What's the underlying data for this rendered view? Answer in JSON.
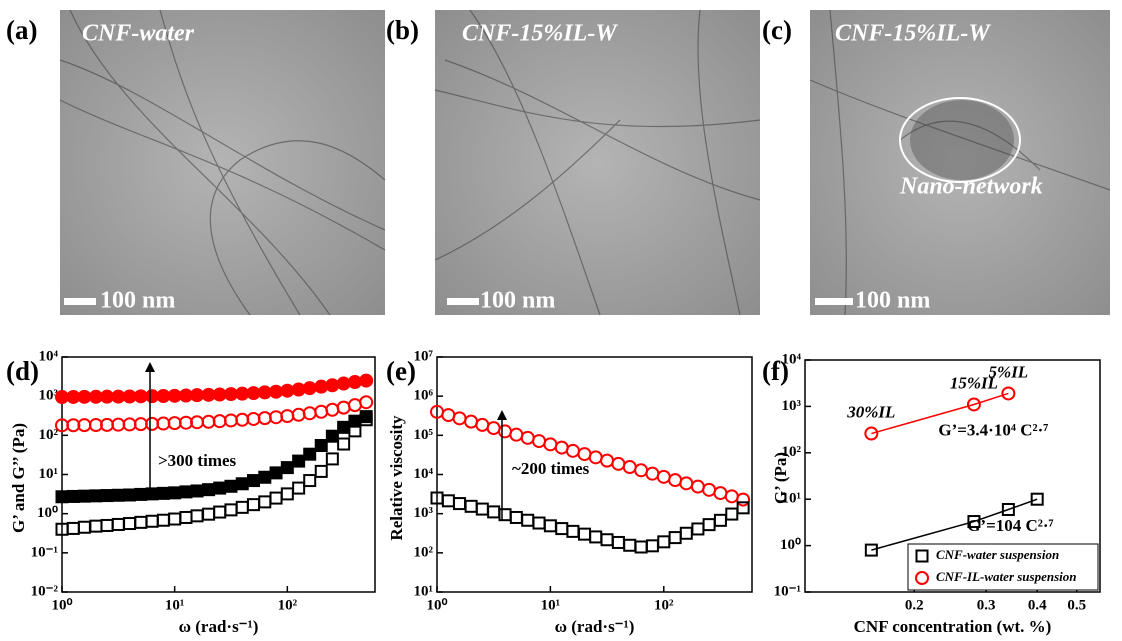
{
  "image_panels": [
    {
      "label": "(a)",
      "title": "CNF-water",
      "scale_bar": "100 nm"
    },
    {
      "label": "(b)",
      "title": "CNF-15%IL-W",
      "scale_bar": "100 nm"
    },
    {
      "label": "(c)",
      "title": "CNF-15%IL-W",
      "scale_bar": "100 nm",
      "annotation": "Nano-network"
    }
  ],
  "chart_data": [
    {
      "type": "scatter",
      "label": "(d)",
      "xlabel": "ω (rad·s⁻¹)",
      "ylabel": "G’ and G’’ (Pa)",
      "log_x": true,
      "log_y": true,
      "xlim": [
        1,
        600
      ],
      "xticks": [
        {
          "value": 1,
          "label": "10⁰"
        },
        {
          "value": 10,
          "label": "10¹"
        },
        {
          "value": 100,
          "label": "10²"
        }
      ],
      "ylim": [
        0.01,
        10000
      ],
      "yticks": [
        {
          "value": 0.01,
          "label": "10⁻²"
        },
        {
          "value": 0.1,
          "label": "10⁻¹"
        },
        {
          "value": 1,
          "label": "10⁰"
        },
        {
          "value": 10,
          "label": "10¹"
        },
        {
          "value": 100,
          "label": "10²"
        },
        {
          "value": 1000,
          "label": "10³"
        },
        {
          "value": 10000,
          "label": "10⁴"
        }
      ],
      "annotation": ">300 times",
      "x": [
        1,
        1.26,
        1.58,
        2,
        2.51,
        3.16,
        3.98,
        5.01,
        6.31,
        7.94,
        10,
        12.6,
        15.8,
        20,
        25.1,
        31.6,
        39.8,
        50.1,
        63.1,
        79.4,
        100,
        126,
        158,
        200,
        251,
        316,
        398,
        501
      ],
      "series": [
        {
          "color": "#ff0000",
          "marker": "circle",
          "filled": true,
          "values": [
            950,
            955,
            960,
            965,
            970,
            975,
            980,
            990,
            1000,
            1010,
            1020,
            1040,
            1060,
            1080,
            1100,
            1130,
            1160,
            1200,
            1250,
            1300,
            1380,
            1480,
            1600,
            1750,
            1900,
            2100,
            2300,
            2500
          ]
        },
        {
          "color": "#ff0000",
          "marker": "circle",
          "filled": false,
          "values": [
            180,
            181,
            182,
            183,
            185,
            187,
            190,
            193,
            196,
            200,
            205,
            210,
            216,
            222,
            230,
            240,
            250,
            262,
            275,
            290,
            310,
            335,
            365,
            400,
            450,
            510,
            590,
            700
          ]
        },
        {
          "color": "#000000",
          "marker": "square",
          "filled": true,
          "values": [
            2.7,
            2.75,
            2.8,
            2.85,
            2.9,
            2.95,
            3.0,
            3.1,
            3.2,
            3.3,
            3.4,
            3.6,
            3.8,
            4.1,
            4.5,
            5.0,
            5.8,
            7,
            8.5,
            11,
            15,
            22,
            33,
            55,
            95,
            160,
            230,
            300
          ]
        },
        {
          "color": "#000000",
          "marker": "square",
          "filled": false,
          "values": [
            0.4,
            0.42,
            0.45,
            0.48,
            0.5,
            0.53,
            0.56,
            0.6,
            0.64,
            0.68,
            0.73,
            0.8,
            0.88,
            0.97,
            1.1,
            1.25,
            1.45,
            1.7,
            2.0,
            2.5,
            3.2,
            4.5,
            7,
            12,
            25,
            60,
            130,
            250
          ]
        }
      ]
    },
    {
      "type": "scatter",
      "label": "(e)",
      "xlabel": "ω (rad·s⁻¹)",
      "ylabel": "Relative viscosity",
      "log_x": true,
      "log_y": true,
      "xlim": [
        1,
        600
      ],
      "xticks": [
        {
          "value": 1,
          "label": "10⁰"
        },
        {
          "value": 10,
          "label": "10¹"
        },
        {
          "value": 100,
          "label": "10²"
        }
      ],
      "ylim": [
        10,
        10000000
      ],
      "yticks": [
        {
          "value": 10,
          "label": "10¹"
        },
        {
          "value": 100,
          "label": "10²"
        },
        {
          "value": 1000,
          "label": "10³"
        },
        {
          "value": 10000,
          "label": "10⁴"
        },
        {
          "value": 100000,
          "label": "10⁵"
        },
        {
          "value": 1000000,
          "label": "10⁶"
        },
        {
          "value": 10000000,
          "label": "10⁷"
        }
      ],
      "annotation": "~200 times",
      "x": [
        1,
        1.26,
        1.58,
        2,
        2.51,
        3.16,
        3.98,
        5.01,
        6.31,
        7.94,
        10,
        12.6,
        15.8,
        20,
        25.1,
        31.6,
        39.8,
        50.1,
        63.1,
        79.4,
        100,
        126,
        158,
        200,
        251,
        316,
        398,
        501
      ],
      "series": [
        {
          "color": "#ff0000",
          "marker": "circle",
          "filled": false,
          "values": [
            398000,
            329000,
            272000,
            224000,
            185000,
            153000,
            126000,
            104000,
            86300,
            71300,
            58900,
            48600,
            40200,
            33200,
            27400,
            22600,
            18700,
            15500,
            12800,
            10500,
            8710,
            7190,
            5940,
            4910,
            4060,
            3350,
            2770,
            2290
          ]
        },
        {
          "color": "#000000",
          "marker": "square",
          "filled": false,
          "values": [
            2510,
            2130,
            1810,
            1540,
            1310,
            1110,
            942,
            800,
            679,
            577,
            490,
            416,
            353,
            300,
            255,
            216,
            184,
            156,
            141,
            151,
            191,
            245,
            316,
            407,
            525,
            676,
            977,
            1410
          ]
        }
      ]
    },
    {
      "type": "line",
      "label": "(f)",
      "xlabel": "CNF concentration (wt. %)",
      "ylabel": "G’ (Pa)",
      "log_x": true,
      "log_y": true,
      "xlim": [
        0.108,
        0.57
      ],
      "xticks": [
        0.2,
        0.3,
        0.4,
        0.5
      ],
      "ylim": [
        0.1,
        10000
      ],
      "yticks": [
        {
          "value": 0.1,
          "label": "10⁻¹"
        },
        {
          "value": 1,
          "label": "10⁰"
        },
        {
          "value": 10,
          "label": "10¹"
        },
        {
          "value": 100,
          "label": "10²"
        },
        {
          "value": 1000,
          "label": "10³"
        },
        {
          "value": 10000,
          "label": "10⁴"
        }
      ],
      "legend": "lower right",
      "series": [
        {
          "name": "CNF-water suspension",
          "color": "#000000",
          "marker": "square",
          "filled": false,
          "x": [
            0.157,
            0.28,
            0.34,
            0.4
          ],
          "values": [
            0.8,
            3.3,
            6,
            10
          ],
          "fit_label": "G’=104 C²·⁷"
        },
        {
          "name": "CNF-IL-water suspension",
          "color": "#ff0000",
          "marker": "circle",
          "filled": false,
          "x": [
            0.157,
            0.28,
            0.34
          ],
          "values": [
            260,
            1100,
            1900
          ],
          "point_labels": [
            "30%IL",
            "15%IL",
            "5%IL"
          ],
          "fit_label": "G’=3.4·10⁴ C²·⁷"
        }
      ]
    }
  ]
}
